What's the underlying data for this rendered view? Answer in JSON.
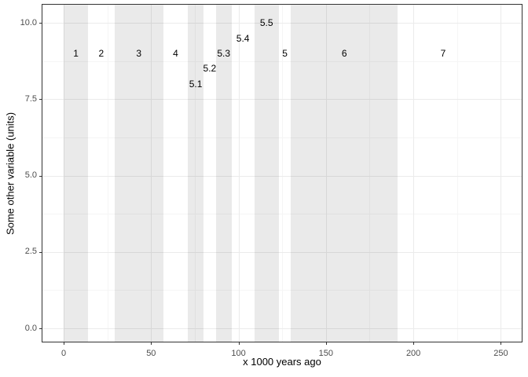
{
  "chart_data": {
    "type": "area",
    "variant": "vertical-band-annotations (marine isotope stages)",
    "title": "",
    "xlabel": "x 1000 years ago",
    "ylabel": "Some other variable (units)",
    "xlim": [
      -12.6,
      262.4
    ],
    "ylim": [
      -0.46,
      10.62
    ],
    "grid": true,
    "legend": "none",
    "x_major_ticks": [
      {
        "value": 0,
        "label": "0"
      },
      {
        "value": 50,
        "label": "50"
      },
      {
        "value": 100,
        "label": "100"
      },
      {
        "value": 150,
        "label": "150"
      },
      {
        "value": 200,
        "label": "200"
      },
      {
        "value": 250,
        "label": "250"
      }
    ],
    "x_minor_ticks": [
      25,
      75,
      125,
      175,
      225
    ],
    "y_major_ticks": [
      {
        "value": 0,
        "label": "0.0"
      },
      {
        "value": 2.5,
        "label": "2.5"
      },
      {
        "value": 5,
        "label": "5.0"
      },
      {
        "value": 7.5,
        "label": "7.5"
      },
      {
        "value": 10,
        "label": "10.0"
      }
    ],
    "y_minor_ticks": [
      1.25,
      3.75,
      6.25,
      8.75
    ],
    "stages": [
      {
        "label": "1",
        "start": 0,
        "end": 14,
        "shaded": true,
        "label_y": 9
      },
      {
        "label": "2",
        "start": 14,
        "end": 29,
        "shaded": false,
        "label_y": 9
      },
      {
        "label": "3",
        "start": 29,
        "end": 57,
        "shaded": true,
        "label_y": 9
      },
      {
        "label": "4",
        "start": 57,
        "end": 71,
        "shaded": false,
        "label_y": 9
      },
      {
        "label": "5.1",
        "start": 71,
        "end": 80,
        "shaded": true,
        "label_y": 8
      },
      {
        "label": "5.2",
        "start": 80,
        "end": 87,
        "shaded": false,
        "label_y": 8.5
      },
      {
        "label": "5.3",
        "start": 87,
        "end": 96,
        "shaded": true,
        "label_y": 9
      },
      {
        "label": "5.4",
        "start": 96,
        "end": 109,
        "shaded": false,
        "label_y": 9.5
      },
      {
        "label": "5.5",
        "start": 109,
        "end": 123,
        "shaded": true,
        "label_y": 10
      },
      {
        "label": "5",
        "start": 123,
        "end": 130,
        "shaded": false,
        "label_y": 9
      },
      {
        "label": "6",
        "start": 130,
        "end": 191,
        "shaded": true,
        "label_y": 9
      },
      {
        "label": "7",
        "start": 191,
        "end": 243,
        "shaded": false,
        "label_y": 9
      }
    ]
  },
  "colors": {
    "background": "#ffffff",
    "band_fill": "rgba(0,0,0,0.082)",
    "grid_major": "#ebebeb",
    "grid_minor": "#f5f5f5",
    "panel_border": "#333333",
    "tick_mark": "#333333",
    "tick_label": "#4d4d4d",
    "annotation_text": "#000000",
    "axis_title": "#000000"
  }
}
